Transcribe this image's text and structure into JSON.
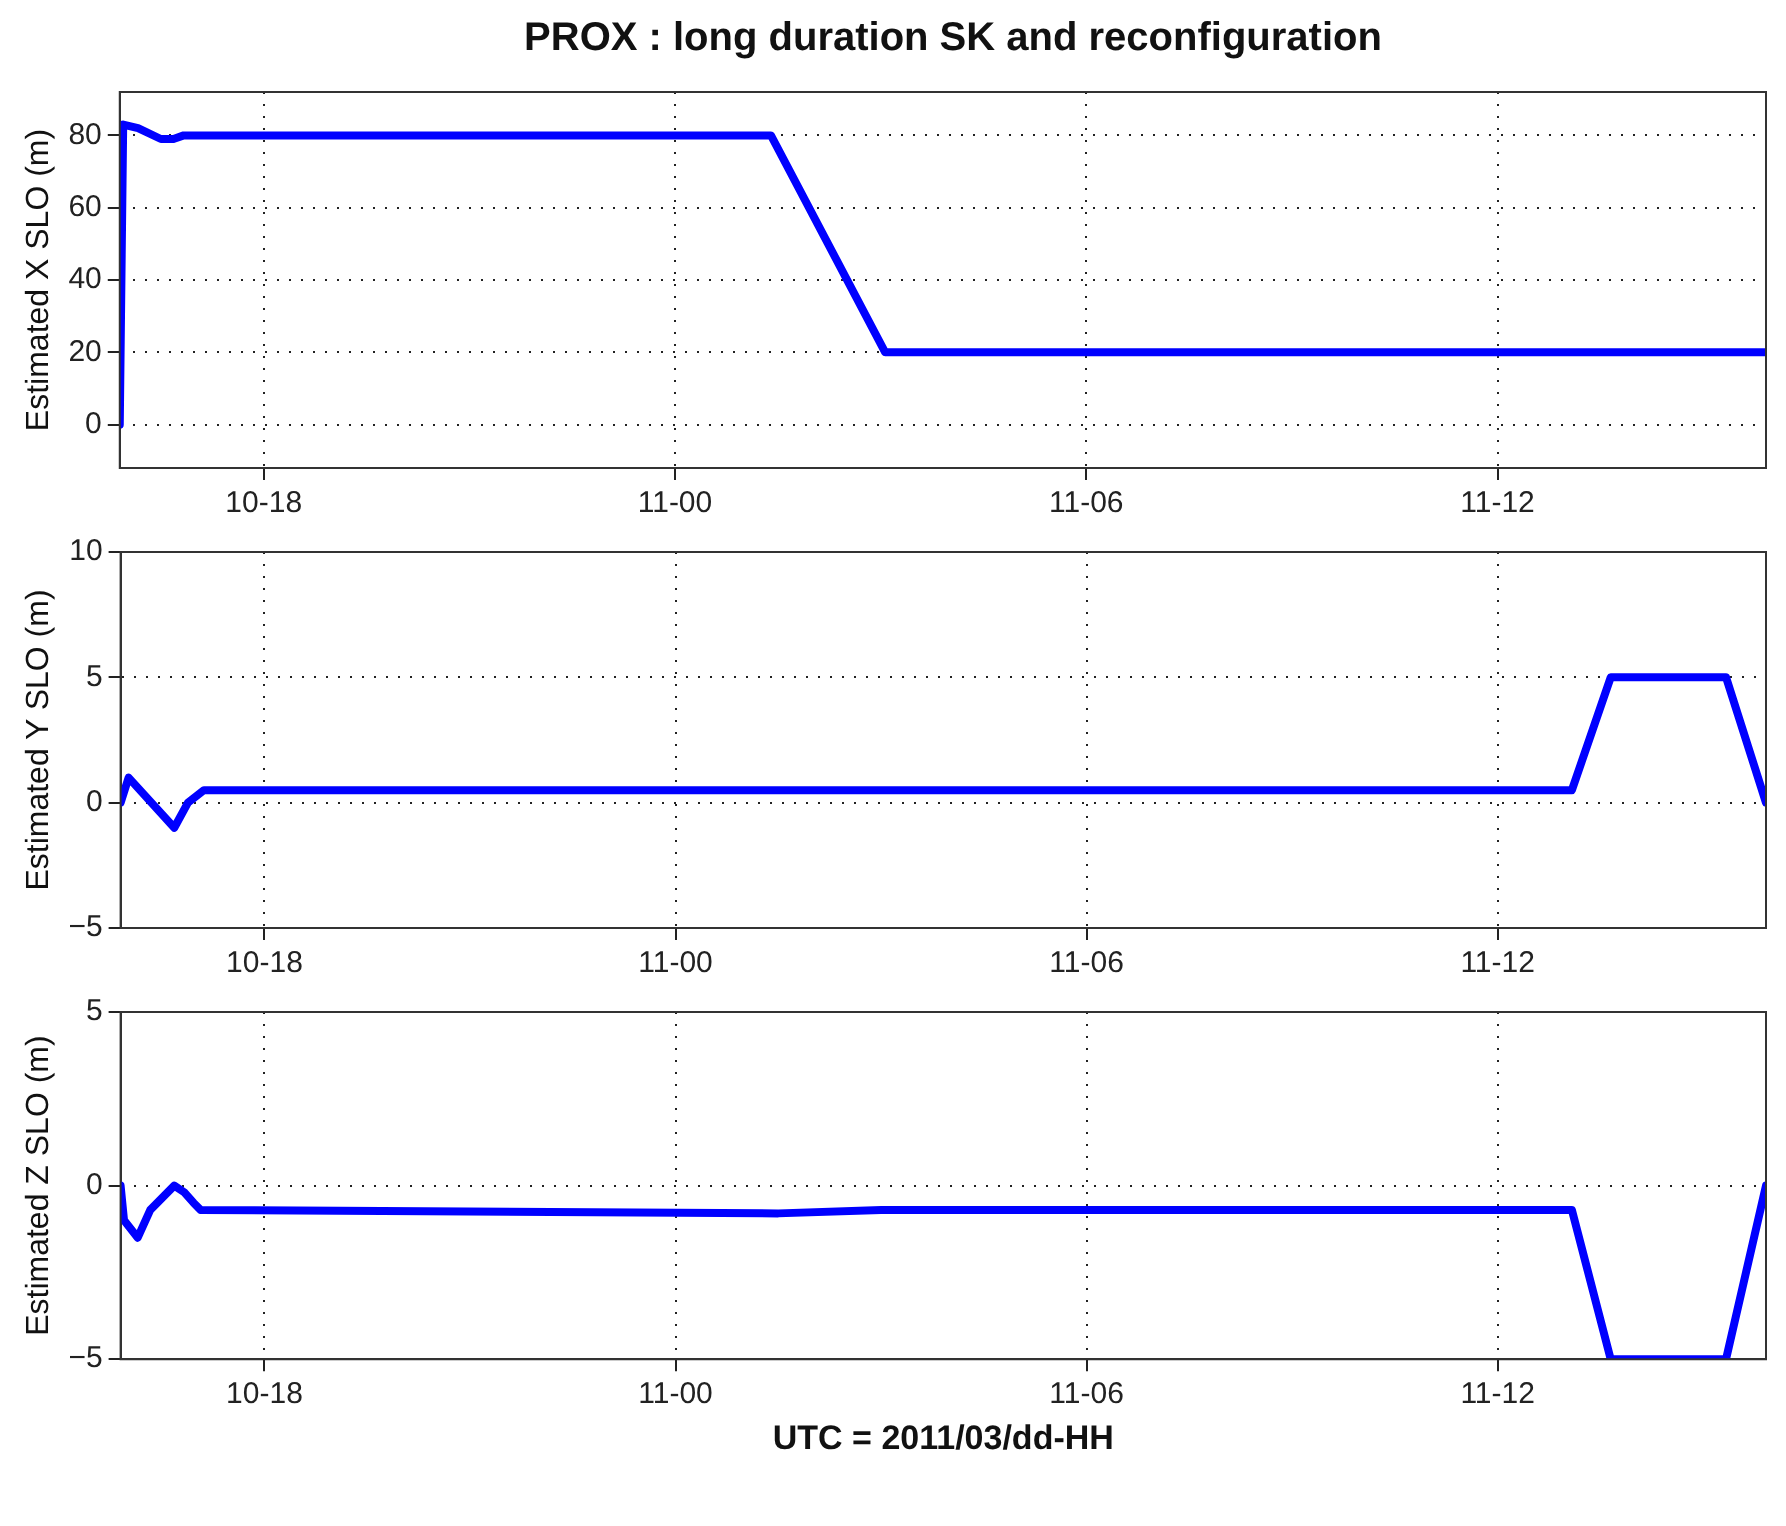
{
  "chart_data": [
    {
      "type": "line",
      "title": "PROX : long duration SK and reconfiguration",
      "ylabel": "Estimated X SLO (m)",
      "grid": true,
      "marker": "none",
      "line_style": "solid",
      "x": [
        "2011-03-10T15:54",
        "2011-03-10T15:57",
        "2011-03-10T16:10",
        "2011-03-10T16:30",
        "2011-03-10T16:41",
        "2011-03-10T16:50",
        "2011-03-11T01:24",
        "2011-03-11T03:04",
        "2011-03-11T15:55"
      ],
      "series": [
        {
          "color": "#0000ff",
          "values": [
            0,
            83,
            82,
            79,
            79,
            80,
            80,
            20,
            20
          ]
        }
      ],
      "xlim": [
        "2011-03-10T15:54",
        "2011-03-11T15:55"
      ],
      "ylim": [
        -12,
        92
      ],
      "xticks": [
        {
          "value": "2011-03-10T18:00",
          "label": "10-18"
        },
        {
          "value": "2011-03-11T00:00",
          "label": "11-00"
        },
        {
          "value": "2011-03-11T06:00",
          "label": "11-06"
        },
        {
          "value": "2011-03-11T12:00",
          "label": "11-12"
        }
      ],
      "yticks": [
        0,
        20,
        40,
        60,
        80
      ]
    },
    {
      "type": "line",
      "ylabel": "Estimated Y SLO (m)",
      "grid": true,
      "marker": "none",
      "line_style": "solid",
      "x": [
        "2011-03-10T15:54",
        "2011-03-10T16:01",
        "2011-03-10T16:41",
        "2011-03-10T16:53",
        "2011-03-10T17:07",
        "2011-03-11T13:05",
        "2011-03-11T13:39",
        "2011-03-11T15:20",
        "2011-03-11T15:55"
      ],
      "series": [
        {
          "color": "#0000ff",
          "values": [
            0,
            1,
            -1,
            0,
            0.5,
            0.5,
            5,
            5,
            0
          ]
        }
      ],
      "xlim": [
        "2011-03-10T15:54",
        "2011-03-11T15:55"
      ],
      "ylim": [
        -5,
        10
      ],
      "xticks": [
        {
          "value": "2011-03-10T18:00",
          "label": "10-18"
        },
        {
          "value": "2011-03-11T00:00",
          "label": "11-00"
        },
        {
          "value": "2011-03-11T06:00",
          "label": "11-06"
        },
        {
          "value": "2011-03-11T12:00",
          "label": "11-12"
        }
      ],
      "yticks": [
        -5,
        0,
        5,
        10
      ]
    },
    {
      "type": "line",
      "ylabel": "Estimated Z SLO (m)",
      "xlabel": "UTC = 2011/03/dd-HH",
      "grid": true,
      "marker": "none",
      "line_style": "solid",
      "x": [
        "2011-03-10T15:54",
        "2011-03-10T15:57",
        "2011-03-10T16:09",
        "2011-03-10T16:20",
        "2011-03-10T16:41",
        "2011-03-10T16:50",
        "2011-03-10T16:58",
        "2011-03-10T17:04",
        "2011-03-11T01:30",
        "2011-03-11T03:00",
        "2011-03-11T13:05",
        "2011-03-11T13:39",
        "2011-03-11T15:20",
        "2011-03-11T15:55"
      ],
      "series": [
        {
          "color": "#0000ff",
          "values": [
            0,
            -1,
            -1.5,
            -0.7,
            0,
            -0.2,
            -0.5,
            -0.7,
            -0.8,
            -0.7,
            -0.7,
            -5,
            -5,
            0
          ]
        }
      ],
      "xlim": [
        "2011-03-10T15:54",
        "2011-03-11T15:55"
      ],
      "ylim": [
        -5,
        5
      ],
      "xticks": [
        {
          "value": "2011-03-10T18:00",
          "label": "10-18"
        },
        {
          "value": "2011-03-11T00:00",
          "label": "11-00"
        },
        {
          "value": "2011-03-11T06:00",
          "label": "11-06"
        },
        {
          "value": "2011-03-11T12:00",
          "label": "11-12"
        }
      ],
      "yticks": [
        -5,
        0,
        5
      ]
    }
  ]
}
